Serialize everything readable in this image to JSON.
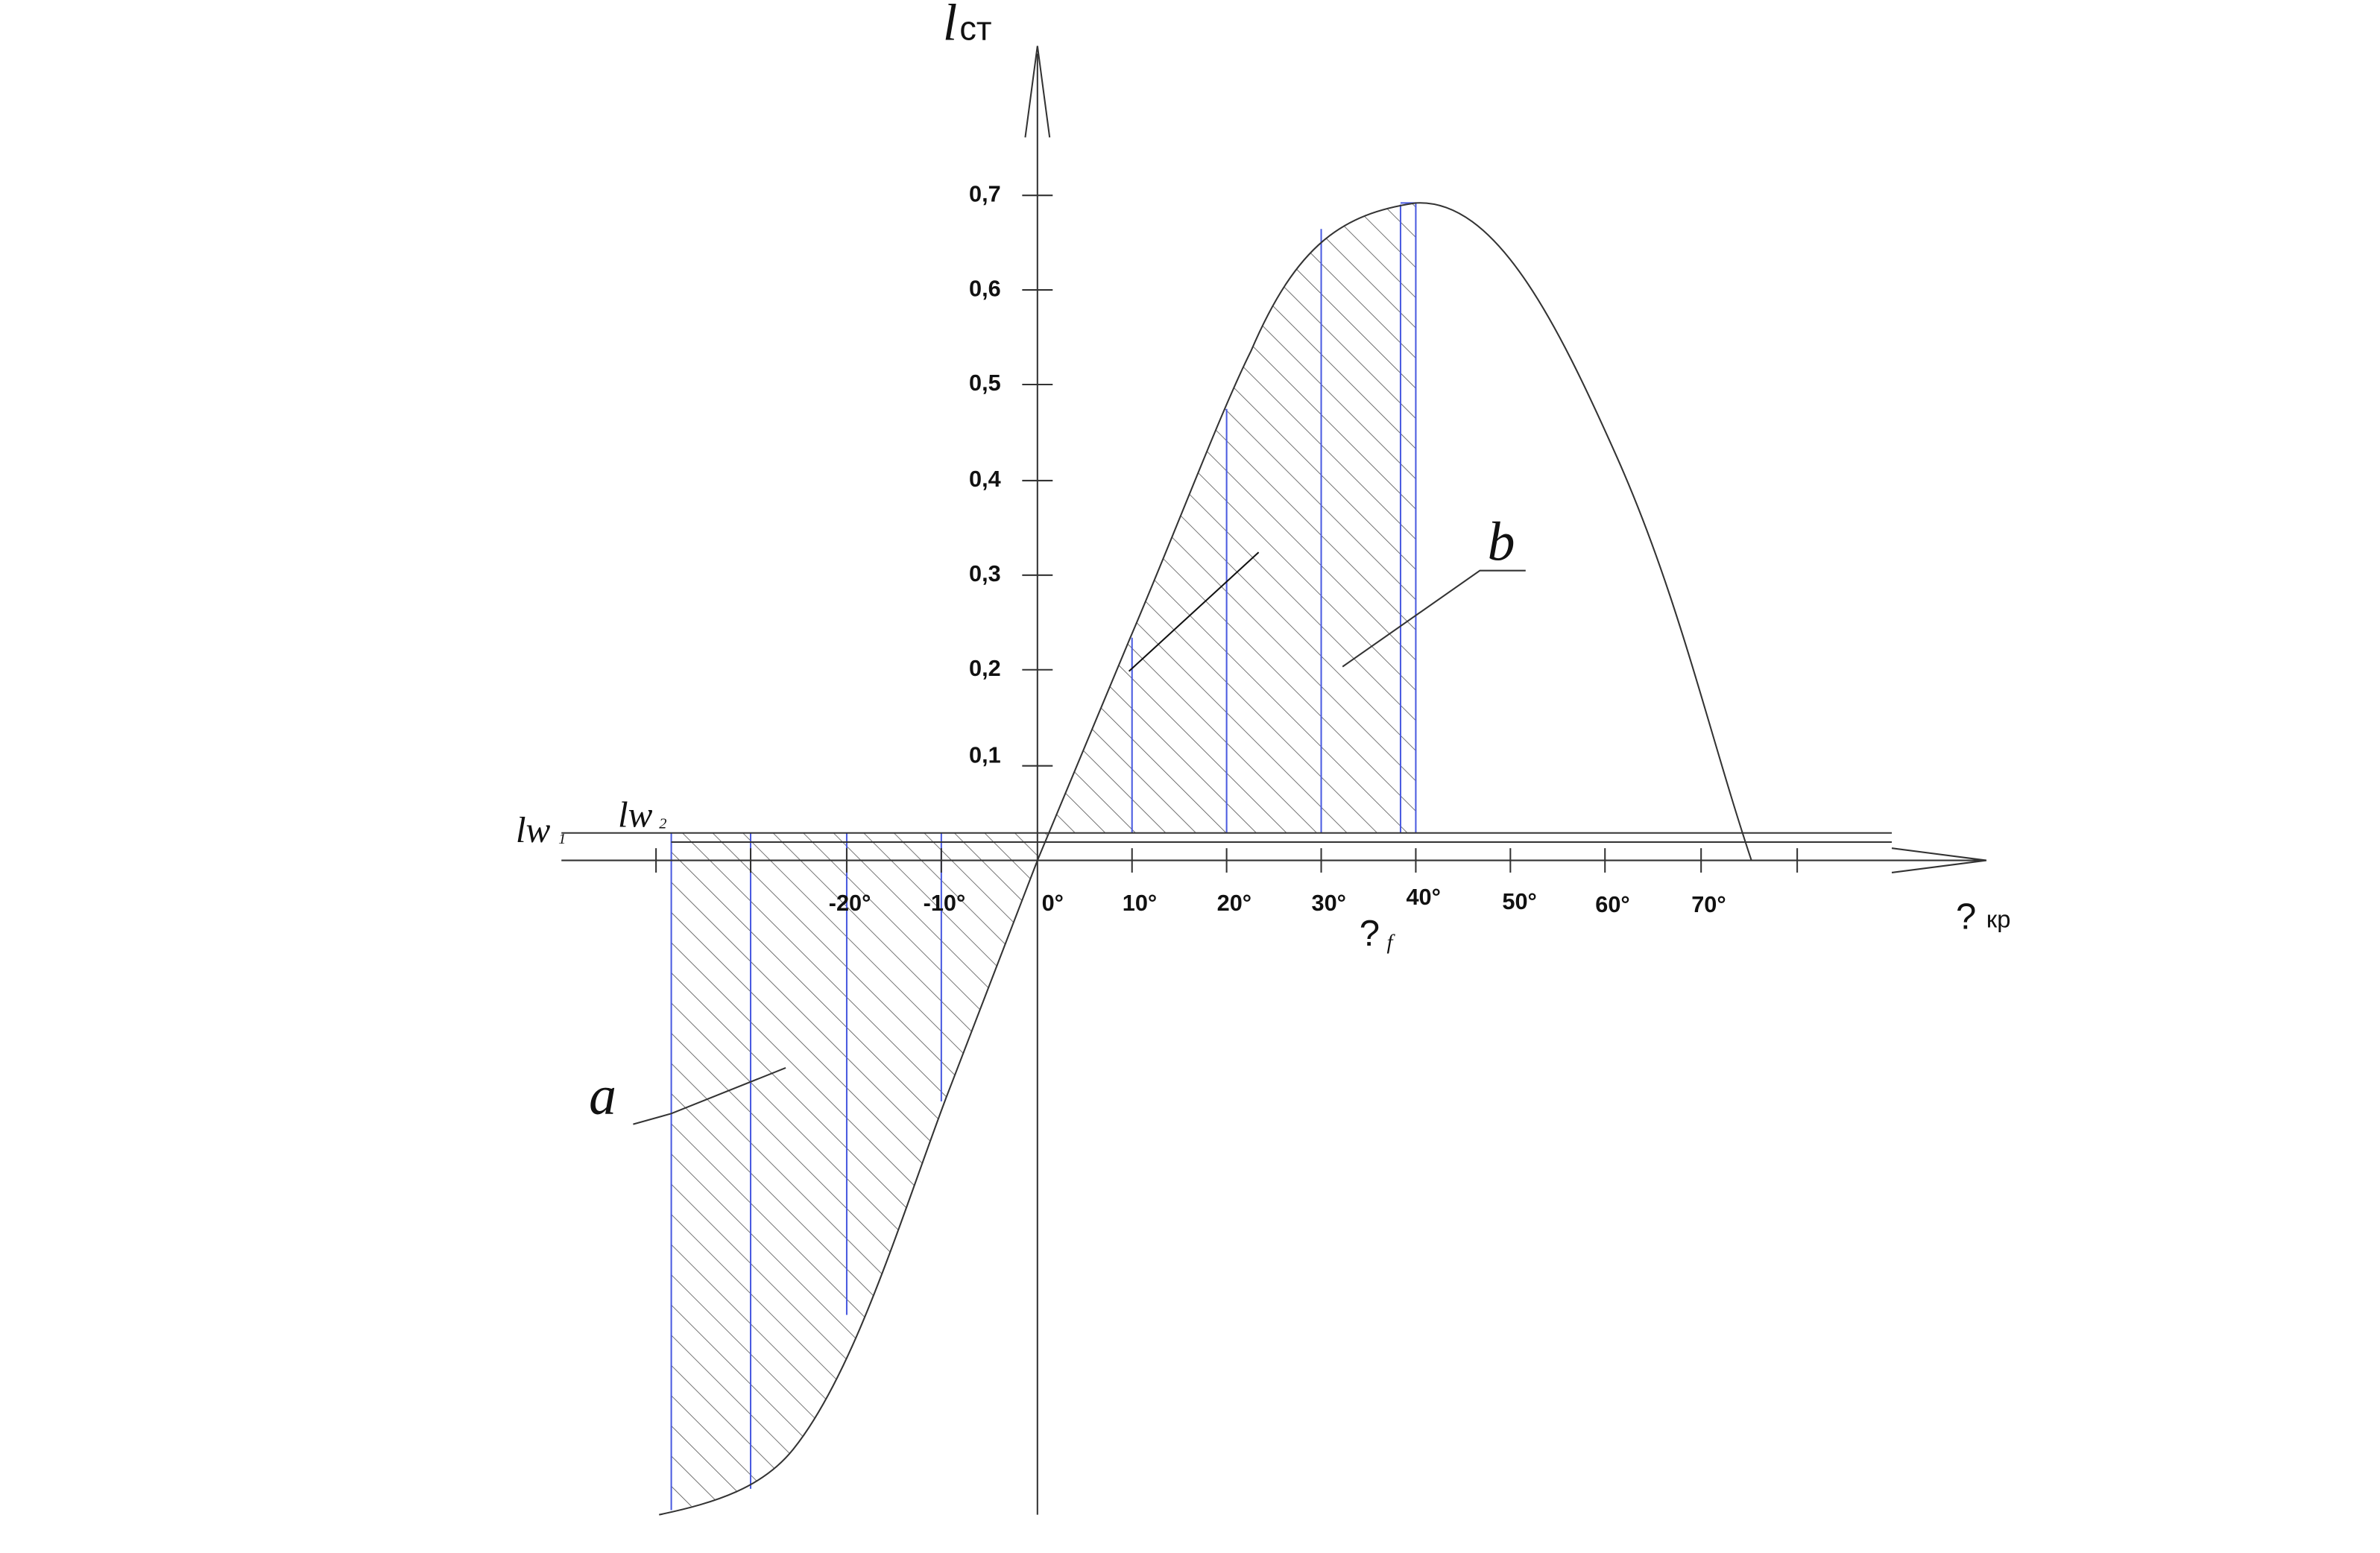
{
  "y_axis": {
    "symbol": "l",
    "subscript": "ст"
  },
  "y_ticks": [
    "0,7",
    "0,6",
    "0,5",
    "0,4",
    "0,3",
    "0,2",
    "0,1"
  ],
  "x_ticks": [
    "-20°",
    "-10°",
    "0°",
    "10°",
    "20°",
    "30°",
    "40°",
    "50°",
    "60°",
    "70°"
  ],
  "x_axis": {
    "symbol": "?",
    "subscript": "кр"
  },
  "phi_f": {
    "symbol": "?",
    "subscript": "f"
  },
  "lw1": {
    "symbol": "lw",
    "subscript": "1"
  },
  "lw2": {
    "symbol": "lw",
    "subscript": "2"
  },
  "regions": {
    "a": "a",
    "b": "b"
  }
}
